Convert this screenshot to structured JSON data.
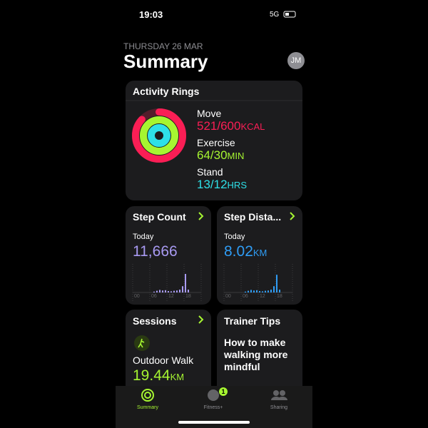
{
  "status": {
    "time": "19:03",
    "network": "5G"
  },
  "header": {
    "date": "THURSDAY 26 MAR",
    "title": "Summary",
    "avatar": "JM"
  },
  "activity": {
    "title": "Activity Rings",
    "metrics": [
      {
        "label": "Move",
        "value": 521,
        "goal": 600,
        "value_label": "521/600",
        "unit": "KCAL",
        "color": "#fa1e55"
      },
      {
        "label": "Exercise",
        "value": 64,
        "goal": 30,
        "value_label": "64/30",
        "unit": "MIN",
        "color": "#a6f531"
      },
      {
        "label": "Stand",
        "value": 13,
        "goal": 12,
        "value_label": "13/12",
        "unit": "HRS",
        "color": "#2ee0e8"
      }
    ]
  },
  "cards": {
    "step_count": {
      "title": "Step Count",
      "period": "Today",
      "value": "11,666",
      "color": "#a89af2",
      "chart": {
        "ylim": [
          0,
          100
        ],
        "values": [
          0,
          0,
          0,
          0,
          0,
          0,
          0,
          3,
          6,
          9,
          7,
          8,
          5,
          4,
          6,
          7,
          10,
          22,
          65,
          10,
          0,
          0,
          0,
          0
        ],
        "xticks": [
          "00",
          "06",
          "12",
          "18"
        ]
      }
    },
    "step_distance": {
      "title": "Step Dista...",
      "period": "Today",
      "value": "8.02",
      "unit": "KM",
      "color": "#2f9cf4",
      "chart": {
        "ylim": [
          0,
          100
        ],
        "values": [
          0,
          0,
          0,
          0,
          0,
          0,
          0,
          3,
          6,
          9,
          7,
          8,
          5,
          4,
          6,
          7,
          10,
          22,
          62,
          10,
          0,
          0,
          0,
          0
        ],
        "xticks": [
          "00",
          "06",
          "12",
          "18"
        ]
      }
    },
    "sessions": {
      "title": "Sessions",
      "activity": "Outdoor Walk",
      "value": "19.44",
      "unit": "KM"
    },
    "trainer_tips": {
      "title": "Trainer Tips",
      "text": "How to make walking more mindful"
    }
  },
  "tabs": {
    "items": [
      "Summary",
      "Fitness+",
      "Sharing"
    ],
    "badge": "1"
  }
}
